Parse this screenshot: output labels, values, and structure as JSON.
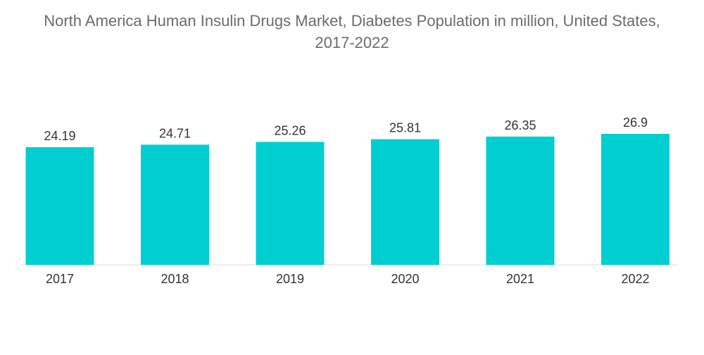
{
  "chart_data": {
    "type": "bar",
    "title": "North America Human Insulin Drugs Market, Diabetes Population in million, United States, 2017-2022",
    "title_lines": [
      "North America Human Insulin Drugs Market, Diabetes Population in million, United States,",
      "2017-2022"
    ],
    "categories": [
      "2017",
      "2018",
      "2019",
      "2020",
      "2021",
      "2022"
    ],
    "values": [
      24.19,
      24.71,
      25.26,
      25.81,
      26.35,
      26.9
    ],
    "value_labels": [
      "24.19",
      "24.71",
      "25.26",
      "25.81",
      "26.35",
      "26.9"
    ],
    "xlabel": "",
    "ylabel": "",
    "grid": false,
    "legend": "none",
    "bar_color": "#00CED1"
  }
}
